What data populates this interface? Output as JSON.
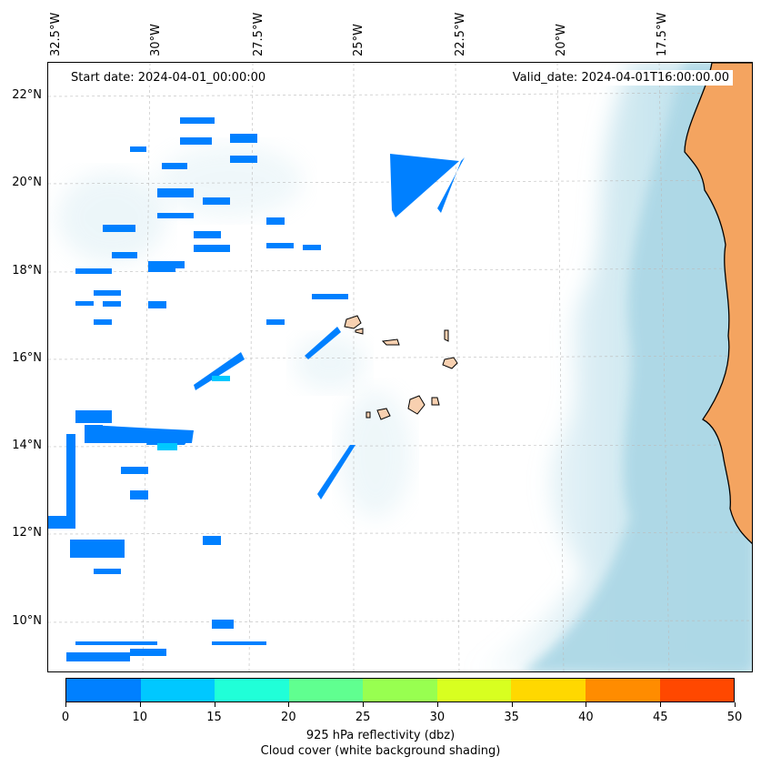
{
  "header": {
    "start_date": "Start date: 2024-04-01_00:00:00",
    "valid_date": "Valid_date: 2024-04-01T16:00:00.00"
  },
  "map": {
    "lon_labels": [
      "32.5°W",
      "30°W",
      "27.5°W",
      "25°W",
      "22.5°W",
      "20°W",
      "17.5°W"
    ],
    "lat_labels": [
      "22°N",
      "20°N",
      "18°N",
      "16°N",
      "14°N",
      "12°N",
      "10°N"
    ],
    "colors": {
      "land": "#f4a460",
      "cape_verde_islands": "#f8d0b0",
      "cloud_shading": "#add8e6",
      "gridline": "#bbbbbb"
    }
  },
  "colorbar": {
    "ticks": [
      "0",
      "10",
      "15",
      "20",
      "25",
      "30",
      "35",
      "40",
      "45",
      "50"
    ],
    "colors": [
      "#0080ff",
      "#00c8ff",
      "#20ffd8",
      "#60ff90",
      "#98ff50",
      "#d8ff20",
      "#ffd800",
      "#ff8c00",
      "#ff4800"
    ],
    "label_line1": "925 hPa reflectivity (dbz)",
    "label_line2": "Cloud cover (white background shading)"
  }
}
